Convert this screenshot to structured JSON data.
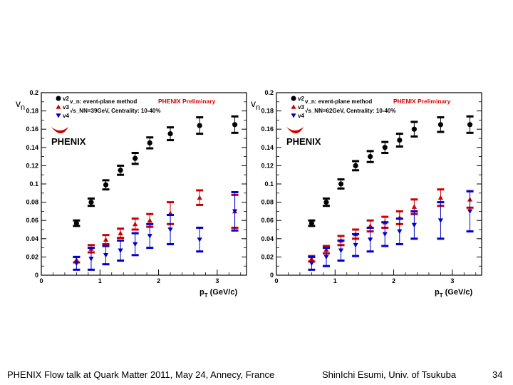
{
  "footer": {
    "talk": "PHENIX Flow talk at Quark Matter 2011, May 24, Annecy, France",
    "author": "ShinIchi Esumi, Univ. of Tsukuba",
    "page": "34"
  },
  "chart_data": [
    {
      "type": "scatter",
      "ylabel_main": "v",
      "ylabel_sub": "n",
      "method": "v_n: event-plane method",
      "energy_label": "√s_NN=39GeV, Centrality: 10-40%",
      "preliminary": "PHENIX Preliminary",
      "logo": "PHENIX",
      "xlabel_main": "p",
      "xlabel_sub": "T",
      "xlabel_unit": "(GeV/c)",
      "xlim": [
        0,
        3.5
      ],
      "ylim": [
        0,
        0.2
      ],
      "xticks": [
        0,
        1,
        2,
        3
      ],
      "yticks": [
        0,
        0.02,
        0.04,
        0.06,
        0.08,
        0.1,
        0.12,
        0.14,
        0.16,
        0.18,
        0.2
      ],
      "ytick_labels": [
        "0",
        "0.02",
        "0.04",
        "0.06",
        "0.08",
        "0.1",
        "0.12",
        "0.14",
        "0.16",
        "0.18",
        "0.2"
      ],
      "series": [
        {
          "name": "v2",
          "color": "#000000",
          "marker": "circle",
          "x": [
            0.6,
            0.85,
            1.1,
            1.35,
            1.6,
            1.85,
            2.2,
            2.7,
            3.3
          ],
          "y": [
            0.057,
            0.08,
            0.099,
            0.115,
            0.128,
            0.145,
            0.155,
            0.164,
            0.165
          ],
          "sys": [
            0.003,
            0.004,
            0.005,
            0.005,
            0.006,
            0.006,
            0.007,
            0.009,
            0.009
          ]
        },
        {
          "name": "v3",
          "color": "#cc0000",
          "marker": "triangle-up",
          "x": [
            0.6,
            0.85,
            1.1,
            1.35,
            1.6,
            1.85,
            2.2,
            2.7,
            3.3
          ],
          "y": [
            0.017,
            0.029,
            0.039,
            0.046,
            0.056,
            0.06,
            0.068,
            0.085,
            0.07
          ],
          "sys": [
            0.003,
            0.004,
            0.005,
            0.005,
            0.006,
            0.007,
            0.012,
            0.008,
            0.018
          ]
        },
        {
          "name": "v4",
          "color": "#0000cc",
          "marker": "triangle-down",
          "x": [
            0.6,
            0.85,
            1.1,
            1.35,
            1.6,
            1.85,
            2.2,
            2.7,
            3.3
          ],
          "y": [
            0.013,
            0.018,
            0.022,
            0.027,
            0.034,
            0.043,
            0.05,
            0.039,
            0.07
          ],
          "sys": [
            0.007,
            0.012,
            0.01,
            0.011,
            0.012,
            0.013,
            0.016,
            0.013,
            0.021
          ]
        }
      ]
    },
    {
      "type": "scatter",
      "ylabel_main": "v",
      "ylabel_sub": "n",
      "method": "v_n: event-plane method",
      "energy_label": "√s_NN=62GeV, Centrality: 10-40%",
      "preliminary": "PHENIX Preliminary",
      "logo": "PHENIX",
      "xlabel_main": "p",
      "xlabel_sub": "T",
      "xlabel_unit": "(GeV/c)",
      "xlim": [
        0,
        3.5
      ],
      "ylim": [
        0,
        0.2
      ],
      "xticks": [
        0,
        1,
        2,
        3
      ],
      "yticks": [
        0,
        0.02,
        0.04,
        0.06,
        0.08,
        0.1,
        0.12,
        0.14,
        0.16,
        0.18,
        0.2
      ],
      "ytick_labels": [
        "0",
        "0.02",
        "0.04",
        "0.06",
        "0.08",
        "0.1",
        "0.12",
        "0.14",
        "0.16",
        "0.18",
        "0.2"
      ],
      "series": [
        {
          "name": "v2",
          "color": "#000000",
          "marker": "circle",
          "x": [
            0.6,
            0.85,
            1.1,
            1.35,
            1.6,
            1.85,
            2.1,
            2.35,
            2.8,
            3.3
          ],
          "y": [
            0.057,
            0.08,
            0.1,
            0.12,
            0.13,
            0.14,
            0.148,
            0.16,
            0.165,
            0.165
          ],
          "sys": [
            0.003,
            0.004,
            0.005,
            0.005,
            0.006,
            0.006,
            0.007,
            0.008,
            0.008,
            0.009
          ]
        },
        {
          "name": "v3",
          "color": "#cc0000",
          "marker": "triangle-up",
          "x": [
            0.6,
            0.85,
            1.1,
            1.35,
            1.6,
            1.85,
            2.1,
            2.35,
            2.8,
            3.3
          ],
          "y": [
            0.018,
            0.028,
            0.038,
            0.045,
            0.054,
            0.058,
            0.063,
            0.075,
            0.085,
            0.083
          ],
          "sys": [
            0.003,
            0.004,
            0.005,
            0.005,
            0.006,
            0.006,
            0.007,
            0.008,
            0.009,
            0.009
          ]
        },
        {
          "name": "v4",
          "color": "#0000cc",
          "marker": "triangle-down",
          "x": [
            0.6,
            0.85,
            1.1,
            1.35,
            1.6,
            1.85,
            2.1,
            2.35,
            2.8,
            3.3
          ],
          "y": [
            0.013,
            0.02,
            0.027,
            0.033,
            0.039,
            0.045,
            0.048,
            0.055,
            0.06,
            0.07
          ],
          "sys": [
            0.007,
            0.01,
            0.011,
            0.012,
            0.013,
            0.013,
            0.014,
            0.015,
            0.02,
            0.022
          ]
        }
      ]
    }
  ]
}
